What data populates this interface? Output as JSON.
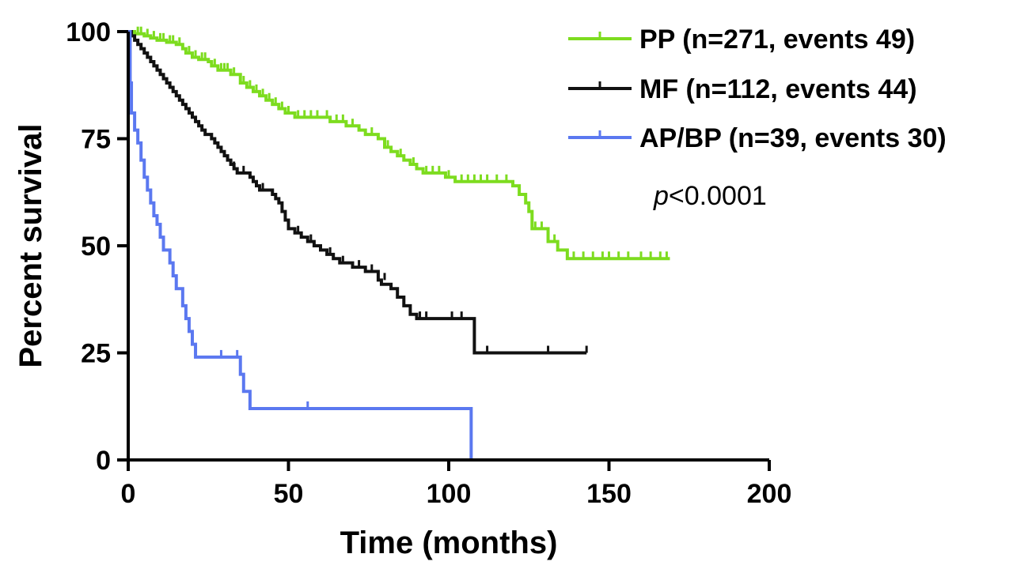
{
  "chart_data": {
    "type": "line",
    "subtype": "kaplan-meier",
    "xlabel": "Time (months)",
    "ylabel": "Percent survival",
    "xlim": [
      0,
      200
    ],
    "ylim": [
      0,
      100
    ],
    "xticks": [
      0,
      50,
      100,
      150,
      200
    ],
    "yticks": [
      0,
      25,
      50,
      75,
      100
    ],
    "grid": false,
    "legend_position": "top-right",
    "annotation": {
      "italic": "p",
      "text": "<0.0001"
    },
    "series": [
      {
        "name": "PP (n=271, events 49)",
        "color": "#7ddc1f",
        "steps": [
          [
            0,
            100
          ],
          [
            2,
            99.5
          ],
          [
            5,
            99
          ],
          [
            7,
            98.5
          ],
          [
            9,
            98
          ],
          [
            12,
            97.5
          ],
          [
            15,
            97
          ],
          [
            17,
            96
          ],
          [
            18,
            95
          ],
          [
            20,
            94
          ],
          [
            22,
            93.5
          ],
          [
            25,
            93
          ],
          [
            26,
            92
          ],
          [
            28,
            91
          ],
          [
            32,
            90
          ],
          [
            35,
            88
          ],
          [
            37,
            87
          ],
          [
            39,
            86
          ],
          [
            41,
            85
          ],
          [
            43,
            84
          ],
          [
            45,
            83
          ],
          [
            47,
            82
          ],
          [
            49,
            81
          ],
          [
            52,
            80
          ],
          [
            63,
            79
          ],
          [
            68,
            78
          ],
          [
            72,
            77
          ],
          [
            74,
            76
          ],
          [
            78,
            75
          ],
          [
            80,
            73
          ],
          [
            82,
            72
          ],
          [
            84,
            71
          ],
          [
            86,
            70
          ],
          [
            88,
            69
          ],
          [
            90,
            68
          ],
          [
            92,
            67
          ],
          [
            99,
            66
          ],
          [
            102,
            65
          ],
          [
            120,
            64
          ],
          [
            122,
            62
          ],
          [
            124,
            60
          ],
          [
            125,
            58
          ],
          [
            126,
            54
          ],
          [
            131,
            51
          ],
          [
            134,
            49
          ],
          [
            137,
            47
          ],
          [
            169,
            47
          ]
        ],
        "censors": [
          [
            3,
            99.5
          ],
          [
            4,
            99.5
          ],
          [
            6,
            99
          ],
          [
            8,
            98.5
          ],
          [
            10,
            98
          ],
          [
            11,
            98
          ],
          [
            13,
            97.5
          ],
          [
            14,
            97.5
          ],
          [
            16,
            97
          ],
          [
            19,
            95
          ],
          [
            21,
            94
          ],
          [
            23,
            93.5
          ],
          [
            24,
            93.5
          ],
          [
            27,
            92
          ],
          [
            29,
            91
          ],
          [
            30,
            91
          ],
          [
            31,
            91
          ],
          [
            33,
            90
          ],
          [
            36,
            88
          ],
          [
            38,
            87
          ],
          [
            40,
            86
          ],
          [
            42,
            85
          ],
          [
            44,
            84
          ],
          [
            46,
            83
          ],
          [
            48,
            82
          ],
          [
            50,
            81
          ],
          [
            53,
            80
          ],
          [
            55,
            80
          ],
          [
            57,
            80
          ],
          [
            59,
            80
          ],
          [
            62,
            80
          ],
          [
            65,
            79
          ],
          [
            67,
            79
          ],
          [
            70,
            78
          ],
          [
            76,
            76
          ],
          [
            81,
            73
          ],
          [
            85,
            71
          ],
          [
            89,
            69
          ],
          [
            93,
            67
          ],
          [
            95,
            67
          ],
          [
            97,
            67
          ],
          [
            100,
            66
          ],
          [
            104,
            65
          ],
          [
            106,
            65
          ],
          [
            108,
            65
          ],
          [
            110,
            65
          ],
          [
            112,
            65
          ],
          [
            115,
            65
          ],
          [
            118,
            65
          ],
          [
            127,
            54
          ],
          [
            129,
            54
          ],
          [
            133,
            51
          ],
          [
            139,
            47
          ],
          [
            142,
            47
          ],
          [
            145,
            47
          ],
          [
            148,
            47
          ],
          [
            150,
            47
          ],
          [
            153,
            47
          ],
          [
            156,
            47
          ],
          [
            160,
            47
          ],
          [
            163,
            47
          ],
          [
            166,
            47
          ],
          [
            168,
            47
          ]
        ]
      },
      {
        "name": "MF (n=112, events 44)",
        "color": "#111111",
        "steps": [
          [
            0,
            100
          ],
          [
            1,
            99
          ],
          [
            2,
            98
          ],
          [
            3,
            97
          ],
          [
            4,
            96
          ],
          [
            5,
            95
          ],
          [
            6,
            94
          ],
          [
            7,
            93
          ],
          [
            8,
            92
          ],
          [
            9,
            91
          ],
          [
            10,
            90
          ],
          [
            11,
            89
          ],
          [
            12,
            88
          ],
          [
            13,
            87
          ],
          [
            14,
            86
          ],
          [
            15,
            85
          ],
          [
            16,
            84
          ],
          [
            17,
            83
          ],
          [
            18,
            82
          ],
          [
            19,
            81
          ],
          [
            20,
            80
          ],
          [
            21,
            79
          ],
          [
            22,
            78
          ],
          [
            23,
            77
          ],
          [
            24,
            76
          ],
          [
            26,
            75
          ],
          [
            27,
            74
          ],
          [
            28,
            73
          ],
          [
            29,
            72
          ],
          [
            30,
            71
          ],
          [
            31,
            70
          ],
          [
            32,
            69
          ],
          [
            33,
            68
          ],
          [
            34,
            67
          ],
          [
            38,
            66
          ],
          [
            39,
            65
          ],
          [
            40,
            64
          ],
          [
            41,
            63
          ],
          [
            45,
            62
          ],
          [
            46,
            61
          ],
          [
            47,
            60
          ],
          [
            48,
            58
          ],
          [
            49,
            56
          ],
          [
            50,
            54
          ],
          [
            52,
            53
          ],
          [
            54,
            52
          ],
          [
            56,
            51
          ],
          [
            58,
            50
          ],
          [
            60,
            49
          ],
          [
            62,
            48
          ],
          [
            64,
            47
          ],
          [
            66,
            46
          ],
          [
            70,
            45
          ],
          [
            74,
            44
          ],
          [
            78,
            42
          ],
          [
            79,
            41
          ],
          [
            82,
            40
          ],
          [
            84,
            38
          ],
          [
            86,
            36
          ],
          [
            88,
            34
          ],
          [
            90,
            33
          ],
          [
            108,
            25
          ],
          [
            143,
            25
          ]
        ],
        "censors": [
          [
            33,
            68
          ],
          [
            36,
            67
          ],
          [
            42,
            63
          ],
          [
            53,
            53
          ],
          [
            57,
            51
          ],
          [
            63,
            48
          ],
          [
            67,
            46
          ],
          [
            72,
            45
          ],
          [
            76,
            44
          ],
          [
            80,
            42
          ],
          [
            91,
            33
          ],
          [
            93,
            33
          ],
          [
            101,
            33
          ],
          [
            104,
            33
          ],
          [
            112,
            25
          ],
          [
            131,
            25
          ],
          [
            143,
            25
          ]
        ]
      },
      {
        "name": "AP/BP (n=39, events 30)",
        "color": "#5b78f0",
        "steps": [
          [
            0,
            100
          ],
          [
            0.6,
            88
          ],
          [
            1,
            81
          ],
          [
            2,
            77
          ],
          [
            3,
            74
          ],
          [
            4,
            70
          ],
          [
            5,
            66
          ],
          [
            6,
            63
          ],
          [
            7,
            60
          ],
          [
            8,
            57
          ],
          [
            9,
            55
          ],
          [
            10,
            52
          ],
          [
            11,
            49
          ],
          [
            13,
            46
          ],
          [
            14,
            43
          ],
          [
            15,
            40
          ],
          [
            17,
            36
          ],
          [
            18,
            33
          ],
          [
            19,
            30
          ],
          [
            20,
            27
          ],
          [
            21,
            24
          ],
          [
            35,
            20
          ],
          [
            36,
            16
          ],
          [
            38,
            12
          ],
          [
            107,
            0
          ]
        ],
        "censors": [
          [
            29,
            24
          ],
          [
            34,
            24
          ],
          [
            56,
            12
          ]
        ]
      }
    ]
  }
}
